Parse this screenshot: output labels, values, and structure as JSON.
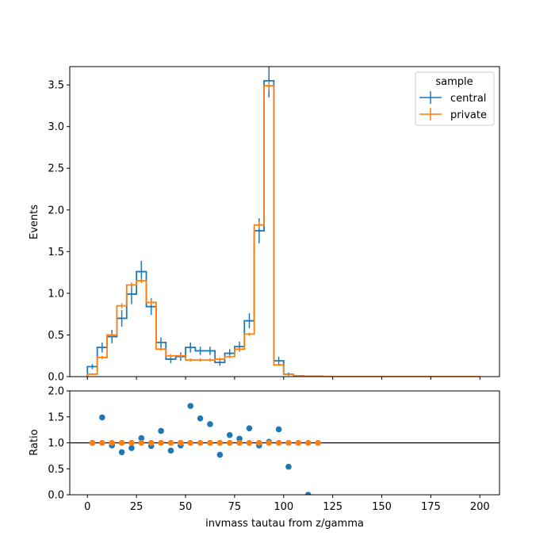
{
  "chart_data": [
    {
      "type": "step",
      "panel": "main",
      "xlabel": "",
      "ylabel": "Events",
      "xlim": [
        -9,
        210
      ],
      "ylim": [
        0,
        3.72
      ],
      "yticks": [
        0.0,
        0.5,
        1.0,
        1.5,
        2.0,
        2.5,
        3.0,
        3.5
      ],
      "ytick_labels": [
        "0.0",
        "0.5",
        "1.0",
        "1.5",
        "2.0",
        "2.5",
        "3.0",
        "3.5"
      ],
      "xticks": [
        0,
        25,
        50,
        75,
        100,
        125,
        150,
        175,
        200
      ],
      "bin_edges": [
        0,
        5,
        10,
        15,
        20,
        25,
        30,
        35,
        40,
        45,
        50,
        55,
        60,
        65,
        70,
        75,
        80,
        85,
        90,
        95,
        100,
        105,
        110,
        115,
        120,
        125,
        130,
        135,
        140,
        145,
        150,
        155,
        160,
        165,
        170,
        175,
        180,
        185,
        190,
        195,
        200
      ],
      "legend": {
        "title": "sample",
        "position": "top-right"
      },
      "series": [
        {
          "name": "central",
          "color": "#1f77b4",
          "values": [
            0.12,
            0.35,
            0.48,
            0.7,
            0.99,
            1.26,
            0.84,
            0.41,
            0.21,
            0.24,
            0.35,
            0.31,
            0.31,
            0.17,
            0.28,
            0.36,
            0.67,
            1.75,
            3.55,
            0.19,
            0.03,
            0.01,
            0.005,
            0.005,
            0,
            0,
            0,
            0,
            0,
            0,
            0,
            0,
            0,
            0,
            0,
            0,
            0,
            0,
            0,
            0
          ],
          "errors": [
            0.03,
            0.06,
            0.08,
            0.1,
            0.12,
            0.13,
            0.1,
            0.06,
            0.05,
            0.05,
            0.06,
            0.05,
            0.05,
            0.04,
            0.05,
            0.06,
            0.09,
            0.15,
            0.2,
            0.05,
            0.02,
            0.01,
            0.005,
            0.005,
            0,
            0,
            0,
            0,
            0,
            0,
            0,
            0,
            0,
            0,
            0,
            0,
            0,
            0,
            0,
            0
          ]
        },
        {
          "name": "private",
          "color": "#ff7f0e",
          "values": [
            0.03,
            0.23,
            0.5,
            0.85,
            1.1,
            1.15,
            0.89,
            0.33,
            0.25,
            0.25,
            0.2,
            0.2,
            0.2,
            0.21,
            0.24,
            0.33,
            0.51,
            1.82,
            3.49,
            0.14,
            0.03,
            0.01,
            0.005,
            0.005,
            0.002,
            0.001,
            0.001,
            0.001,
            0.001,
            0.001,
            0.001,
            0.001,
            0.001,
            0.001,
            0.001,
            0.001,
            0.001,
            0.001,
            0.001,
            0.001
          ],
          "errors": [
            0.01,
            0.02,
            0.02,
            0.03,
            0.03,
            0.03,
            0.03,
            0.02,
            0.02,
            0.02,
            0.02,
            0.02,
            0.02,
            0.02,
            0.02,
            0.02,
            0.02,
            0.04,
            0.05,
            0.01,
            0.005,
            0.003,
            0.002,
            0.002,
            0,
            0,
            0,
            0,
            0,
            0,
            0,
            0,
            0,
            0,
            0,
            0,
            0,
            0,
            0,
            0
          ]
        }
      ]
    },
    {
      "type": "scatter",
      "panel": "ratio",
      "xlabel": "invmass tautau from z/gamma",
      "ylabel": "Ratio",
      "xlim": [
        -9,
        210
      ],
      "ylim": [
        0,
        2.0
      ],
      "yticks": [
        0.0,
        0.5,
        1.0,
        1.5,
        2.0
      ],
      "ytick_labels": [
        "0.0",
        "0.5",
        "1.0",
        "1.5",
        "2.0"
      ],
      "xticks": [
        0,
        25,
        50,
        75,
        100,
        125,
        150,
        175,
        200
      ],
      "xtick_labels": [
        "0",
        "25",
        "50",
        "75",
        "100",
        "125",
        "150",
        "175",
        "200"
      ],
      "reference_line": 1.0,
      "series": [
        {
          "name": "central",
          "color": "#1f77b4",
          "x": [
            2.5,
            7.5,
            12.5,
            17.5,
            22.5,
            27.5,
            32.5,
            37.5,
            42.5,
            47.5,
            52.5,
            57.5,
            62.5,
            67.5,
            72.5,
            77.5,
            82.5,
            87.5,
            92.5,
            97.5,
            102.5,
            112.5
          ],
          "y": [
            1.0,
            1.49,
            0.95,
            0.82,
            0.9,
            1.09,
            0.94,
            1.23,
            0.85,
            0.95,
            1.71,
            1.47,
            1.36,
            0.77,
            1.15,
            1.08,
            1.28,
            0.95,
            1.02,
            1.26,
            0.54,
            0.0
          ]
        },
        {
          "name": "private",
          "color": "#ff7f0e",
          "x": [
            2.5,
            7.5,
            12.5,
            17.5,
            22.5,
            27.5,
            32.5,
            37.5,
            42.5,
            47.5,
            52.5,
            57.5,
            62.5,
            67.5,
            72.5,
            77.5,
            82.5,
            87.5,
            92.5,
            97.5,
            102.5,
            107.5,
            112.5,
            117.5
          ],
          "y": [
            1,
            1,
            1,
            1,
            1,
            1,
            1,
            1,
            1,
            1,
            1,
            1,
            1,
            1,
            1,
            1,
            1,
            1,
            1,
            1,
            1,
            1,
            1,
            1
          ]
        }
      ]
    }
  ]
}
